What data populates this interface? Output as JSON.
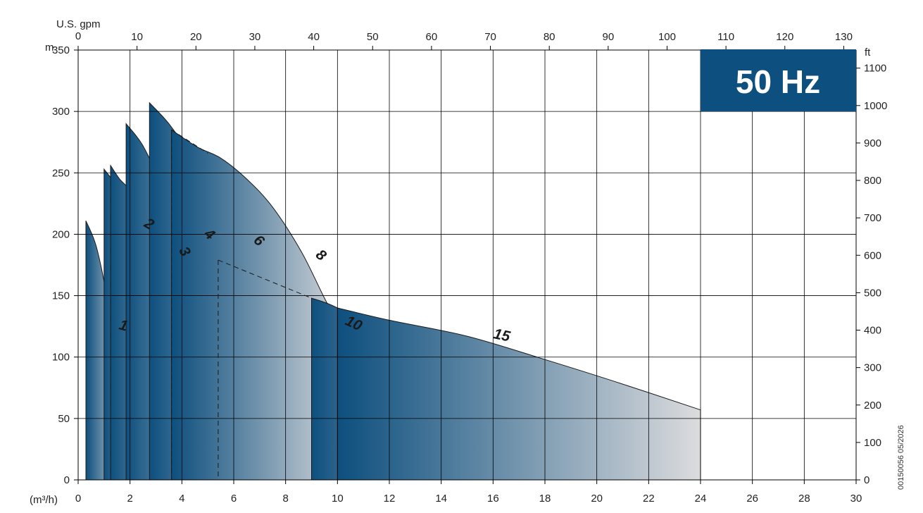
{
  "chart_data": {
    "type": "area",
    "title": "",
    "badge": "50 Hz",
    "xlabel": "(m³/h)",
    "x2label": "U.S. gpm",
    "ylabel": "m",
    "y2label": "ft",
    "x_range": [
      0,
      30
    ],
    "x_ticks": [
      0,
      2,
      4,
      6,
      8,
      10,
      12,
      14,
      16,
      18,
      20,
      22,
      24,
      26,
      28,
      30
    ],
    "x2_range": [
      0,
      132.1
    ],
    "x2_ticks": [
      0,
      10,
      20,
      30,
      40,
      50,
      60,
      70,
      80,
      90,
      100,
      110,
      120,
      130
    ],
    "y_range": [
      0,
      350
    ],
    "y_ticks": [
      0,
      50,
      100,
      150,
      200,
      250,
      300,
      350
    ],
    "y2_range": [
      0,
      1148.3
    ],
    "y2_ticks": [
      0,
      100,
      200,
      300,
      400,
      500,
      600,
      700,
      800,
      900,
      1000,
      1100
    ],
    "grid": true,
    "colors": {
      "dark": "#0d4f7e",
      "light": "#dcdcde",
      "badge": "#0d4f7e",
      "grid": "#000000"
    },
    "series": [
      {
        "name": "1",
        "curve": [
          [
            0.3,
            211
          ],
          [
            0.7,
            190
          ],
          [
            1.1,
            150
          ],
          [
            1.5,
            95
          ],
          [
            1.8,
            38
          ]
        ],
        "ends": [
          0.3,
          1.8
        ],
        "label_at": [
          1.7,
          122
        ]
      },
      {
        "name": "2",
        "curve": [
          [
            1.0,
            253
          ],
          [
            1.5,
            238
          ],
          [
            2.0,
            212
          ],
          [
            2.5,
            180
          ],
          [
            3.0,
            148
          ],
          [
            3.3,
            124
          ]
        ],
        "ends": [
          1.0,
          3.3
        ],
        "label_at": [
          2.65,
          205
        ]
      },
      {
        "name": "3",
        "curve": [
          [
            1.25,
            256
          ],
          [
            1.6,
            245
          ],
          [
            2.2,
            230
          ],
          [
            2.8,
            195
          ],
          [
            3.5,
            150
          ],
          [
            4.2,
            125
          ],
          [
            4.8,
            101
          ]
        ],
        "ends": [
          1.25,
          4.8
        ],
        "label_at": [
          3.95,
          184
        ]
      },
      {
        "name": "4",
        "curve": [
          [
            1.85,
            290
          ],
          [
            2.5,
            272
          ],
          [
            3.2,
            240
          ],
          [
            4.0,
            195
          ],
          [
            4.8,
            150
          ],
          [
            5.5,
            100
          ],
          [
            6.0,
            70
          ]
        ],
        "ends": [
          1.85,
          6.0
        ],
        "label_at": [
          4.95,
          197
        ]
      },
      {
        "name": "6",
        "curve": [
          [
            2.75,
            307
          ],
          [
            3.5,
            290
          ],
          [
            4.3,
            265
          ],
          [
            5.2,
            230
          ],
          [
            6.0,
            192
          ],
          [
            7.0,
            148
          ],
          [
            8.0,
            101
          ]
        ],
        "ends": [
          2.75,
          8.0
        ],
        "label_at": [
          6.85,
          192
        ]
      },
      {
        "name": "8",
        "curve": [
          [
            3.6,
            285
          ],
          [
            4.6,
            271
          ],
          [
            5.5,
            262
          ],
          [
            6.5,
            245
          ],
          [
            7.5,
            222
          ],
          [
            8.6,
            186
          ],
          [
            9.5,
            148
          ],
          [
            10.2,
            120
          ],
          [
            10.5,
            105
          ]
        ],
        "ends": [
          3.6,
          10.5
        ],
        "label_at": [
          9.25,
          180
        ]
      },
      {
        "name": "10",
        "curve": [
          [
            9.0,
            148
          ],
          [
            10.0,
            140
          ],
          [
            12.0,
            115
          ],
          [
            14.0,
            85
          ],
          [
            16.0,
            57
          ]
        ],
        "ends": [
          9.0,
          16.0
        ],
        "label_at": [
          10.55,
          124
        ]
      },
      {
        "name": "15",
        "curve": [
          [
            10.0,
            140
          ],
          [
            12.0,
            130
          ],
          [
            15.0,
            117
          ],
          [
            18.0,
            98
          ],
          [
            21.0,
            78
          ],
          [
            24.0,
            57
          ]
        ],
        "ends": [
          10.0,
          24.0
        ],
        "label_at": [
          16.3,
          114
        ]
      }
    ],
    "dashed_guides": [
      {
        "x": 1.25,
        "top": 250
      },
      {
        "x": 3.6,
        "top": 285
      },
      {
        "x": 5.4,
        "top": 179
      },
      {
        "x": 9.0,
        "top": 148
      }
    ],
    "dashed_connectors": [
      [
        [
          3.6,
          285
        ],
        [
          5.0,
          266
        ]
      ],
      [
        [
          5.4,
          179
        ],
        [
          9.0,
          148
        ]
      ]
    ],
    "code": "00150056 05/2026"
  }
}
